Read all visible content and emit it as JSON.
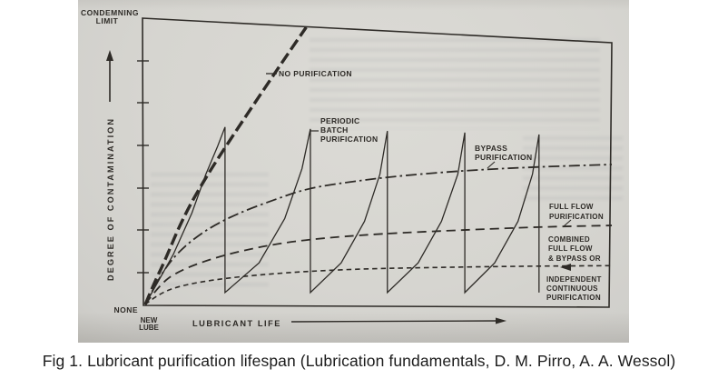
{
  "figure": {
    "caption": "Fig 1. Lubricant purification lifespan (Lubrication fundamentals, D. M. Pirro, A. A. Wessol)"
  },
  "colors": {
    "ink": "#2e2b27",
    "photo_background": "#d6d5d0",
    "page_background": "#ffffff",
    "caption_color": "#1c1c1c"
  },
  "chart_data": {
    "type": "line",
    "title": "Lubricant purification lifespan",
    "xlabel": "LUBRICANT LIFE",
    "ylabel": "DEGREE OF CONTAMINATION",
    "y_axis_top_label_lines": [
      "CONDEMNING",
      "LIMIT"
    ],
    "y_axis_bottom_label": "NONE",
    "x_axis_origin_label_lines": [
      "NEW",
      "LUBE"
    ],
    "grid": false,
    "legend": "inline curve annotations",
    "x_range_note": "qualitative, 0-100 = relative lubricant life",
    "y_range_note": "qualitative, 0 = NONE, 100 = CONDEMNING LIMIT",
    "series": [
      {
        "name": "NO PURIFICATION",
        "label_lines": [
          "NO PURIFICATION"
        ],
        "line_style": "heavy-dashed",
        "smooth": true,
        "points": [
          [
            0,
            0
          ],
          [
            2,
            8
          ],
          [
            4,
            15
          ],
          [
            8,
            31
          ],
          [
            13,
            46
          ],
          [
            20,
            64
          ],
          [
            26,
            79
          ],
          [
            30,
            89
          ],
          [
            34.5,
            100
          ]
        ]
      },
      {
        "name": "PERIODIC BATCH PURIFICATION",
        "label_lines": [
          "PERIODIC",
          "BATCH",
          "PURIFICATION"
        ],
        "line_style": "thin-solid-sawtooth",
        "smooth": false,
        "points": [
          [
            0,
            0
          ],
          [
            6,
            18
          ],
          [
            10,
            33
          ],
          [
            13,
            47
          ],
          [
            15.5,
            57
          ],
          [
            17.1,
            64
          ],
          [
            17.1,
            4.3
          ],
          [
            24.4,
            15
          ],
          [
            29.9,
            31
          ],
          [
            33.6,
            49
          ],
          [
            35.4,
            63.3
          ],
          [
            35.4,
            4.3
          ],
          [
            42,
            15
          ],
          [
            47,
            30
          ],
          [
            50.3,
            47
          ],
          [
            51.9,
            62.6
          ],
          [
            51.9,
            4.3
          ],
          [
            58.5,
            15
          ],
          [
            63.5,
            30
          ],
          [
            67,
            47
          ],
          [
            68.5,
            62
          ],
          [
            68.5,
            4.3
          ],
          [
            74.9,
            15
          ],
          [
            79.9,
            30
          ],
          [
            83,
            47
          ],
          [
            84.4,
            61.3
          ],
          [
            84.4,
            4.3
          ]
        ]
      },
      {
        "name": "BYPASS PURIFICATION",
        "label_lines": [
          "BYPASS",
          "PURIFICATION"
        ],
        "line_style": "dash-dot",
        "smooth": true,
        "points": [
          [
            0,
            0
          ],
          [
            3,
            10
          ],
          [
            7,
            19
          ],
          [
            13,
            27
          ],
          [
            20,
            33
          ],
          [
            28,
            38
          ],
          [
            35,
            42
          ],
          [
            45,
            44.5
          ],
          [
            55,
            46.5
          ],
          [
            70,
            48.5
          ],
          [
            85,
            49.7
          ],
          [
            100,
            50.5
          ]
        ]
      },
      {
        "name": "FULL FLOW PURIFICATION",
        "label_lines": [
          "FULL FLOW",
          "PURIFICATION"
        ],
        "line_style": "long-dash",
        "smooth": true,
        "points": [
          [
            0,
            0
          ],
          [
            3,
            7
          ],
          [
            7,
            12
          ],
          [
            15,
            17
          ],
          [
            25,
            21
          ],
          [
            35,
            23.5
          ],
          [
            50,
            25.5
          ],
          [
            70,
            27
          ],
          [
            85,
            28
          ],
          [
            100,
            28.5
          ]
        ]
      },
      {
        "name": "COMBINED FULL FLOW & BYPASS OR INDEPENDENT CONTINUOUS PURIFICATION",
        "label_lines": [
          "COMBINED",
          "FULL FLOW",
          "& BYPASS OR",
          "INDEPENDENT",
          "CONTINUOUS",
          "PURIFICATION"
        ],
        "line_style": "short-dash",
        "smooth": true,
        "points": [
          [
            0,
            0
          ],
          [
            3,
            4
          ],
          [
            8,
            7
          ],
          [
            17,
            9.5
          ],
          [
            30,
            11.5
          ],
          [
            45,
            12.8
          ],
          [
            60,
            13.3
          ],
          [
            80,
            13.8
          ],
          [
            100,
            14
          ]
        ]
      }
    ]
  }
}
